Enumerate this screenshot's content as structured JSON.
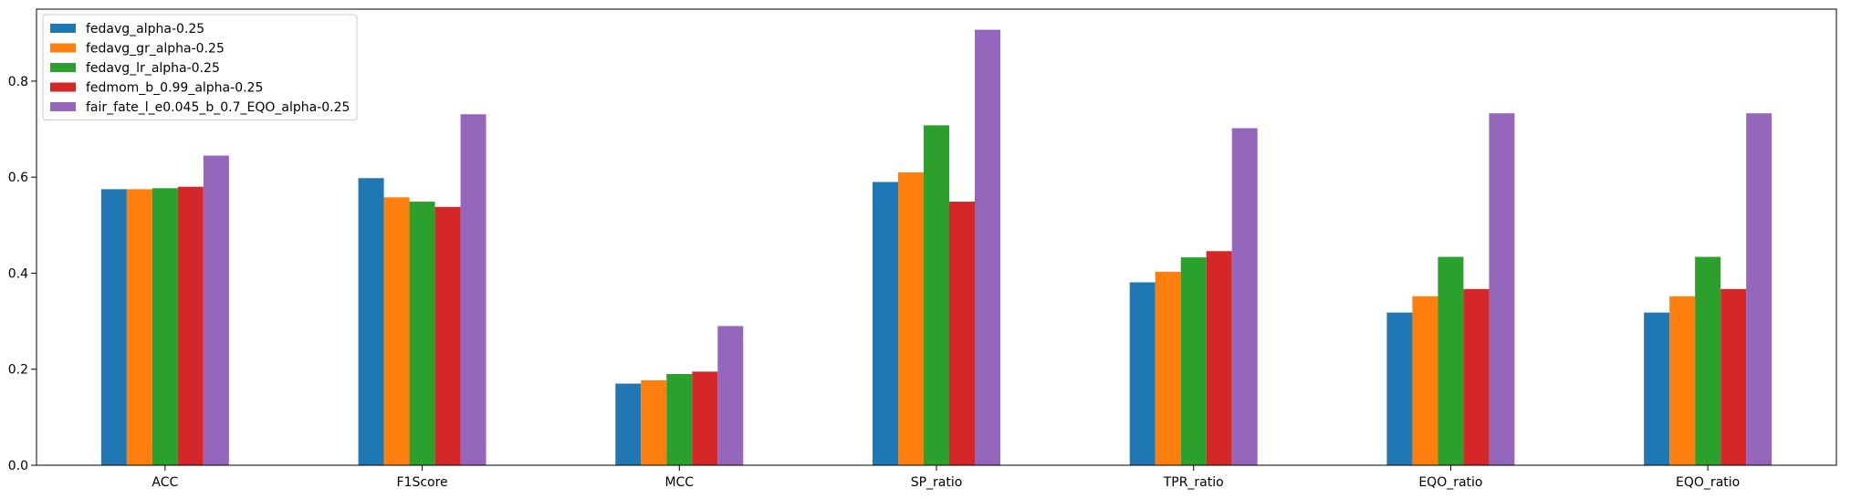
{
  "chart_data": {
    "type": "bar",
    "title": "",
    "xlabel": "",
    "ylabel": "",
    "ylim": [
      0,
      0.95
    ],
    "yticks": [
      0.0,
      0.2,
      0.4,
      0.6,
      0.8
    ],
    "ytick_labels": [
      "0.0",
      "0.2",
      "0.4",
      "0.6",
      "0.8"
    ],
    "categories": [
      "ACC",
      "F1Score",
      "MCC",
      "SP_ratio",
      "TPR_ratio",
      "EQO_ratio",
      "EQO_ratio"
    ],
    "grid": false,
    "legend_position": "top-left",
    "series": [
      {
        "name": "fedavg_alpha-0.25",
        "color": "#1f77b4",
        "values": [
          0.575,
          0.598,
          0.17,
          0.59,
          0.381,
          0.318,
          0.318
        ]
      },
      {
        "name": "fedavg_gr_alpha-0.25",
        "color": "#ff7f0e",
        "values": [
          0.575,
          0.558,
          0.177,
          0.61,
          0.403,
          0.352,
          0.352
        ]
      },
      {
        "name": "fedavg_lr_alpha-0.25",
        "color": "#2ca02c",
        "values": [
          0.577,
          0.549,
          0.19,
          0.708,
          0.433,
          0.434,
          0.434
        ]
      },
      {
        "name": "fedmom_b_0.99_alpha-0.25",
        "color": "#d62728",
        "values": [
          0.58,
          0.538,
          0.195,
          0.549,
          0.446,
          0.367,
          0.367
        ]
      },
      {
        "name": "fair_fate_l_e0.045_b_0.7_EQO_alpha-0.25",
        "color": "#9467bd",
        "values": [
          0.645,
          0.731,
          0.29,
          0.907,
          0.702,
          0.733,
          0.733
        ]
      }
    ]
  }
}
